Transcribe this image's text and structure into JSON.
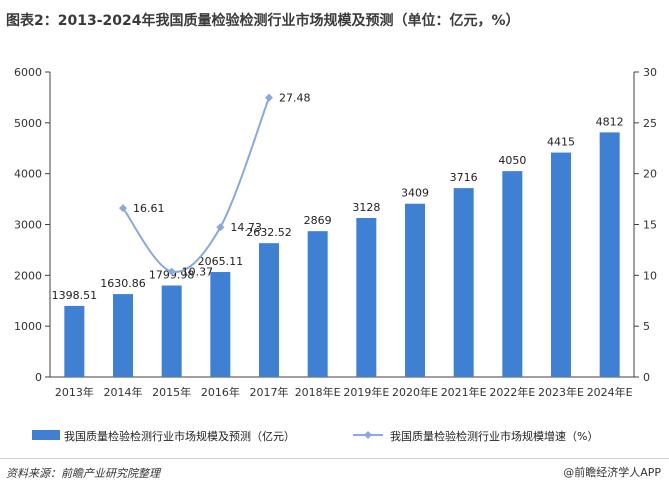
{
  "title": "图表2：2013-2024年我国质量检验检测行业市场规模及预测（单位：亿元，%）",
  "source": "资料来源：前瞻产业研究院整理",
  "brand": "@前瞻经济学人APP",
  "colors": {
    "bar": "#3f80d3",
    "line": "#8aa9dc",
    "axis": "#404040"
  },
  "chart_data": {
    "type": "bar",
    "categories": [
      "2013年",
      "2014年",
      "2015年",
      "2016年",
      "2017年",
      "2018年E",
      "2019年E",
      "2020年E",
      "2021年E",
      "2022年E",
      "2023年E",
      "2024年E"
    ],
    "series": [
      {
        "name": "我国质量检验检测行业市场规模及预测（亿元）",
        "type": "bar",
        "axis": "left",
        "values": [
          1398.51,
          1630.86,
          1799.98,
          2065.11,
          2632.52,
          2869,
          3128,
          3409,
          3716,
          4050,
          4415,
          4812
        ],
        "labels": [
          "1398.51",
          "1630.86",
          "1799.98",
          "2065.11",
          "2632.52",
          "2869",
          "3128",
          "3409",
          "3716",
          "4050",
          "4415",
          "4812"
        ]
      },
      {
        "name": "我国质量检验检测行业市场规模增速（%）",
        "type": "line",
        "axis": "right",
        "values": [
          null,
          16.61,
          10.37,
          14.73,
          27.48,
          null,
          null,
          null,
          null,
          null,
          null,
          null
        ],
        "labels": [
          "",
          "16.61",
          "10.37",
          "14.73",
          "27.48",
          "",
          "",
          "",
          "",
          "",
          "",
          ""
        ]
      }
    ],
    "ylim_left": [
      0,
      6000
    ],
    "yticks_left": [
      "0",
      "1000",
      "2000",
      "3000",
      "4000",
      "5000",
      "6000"
    ],
    "ylim_right": [
      0,
      30
    ],
    "yticks_right": [
      "0",
      "5",
      "10",
      "15",
      "20",
      "25",
      "30"
    ],
    "grid": false,
    "legend": "bottom"
  }
}
